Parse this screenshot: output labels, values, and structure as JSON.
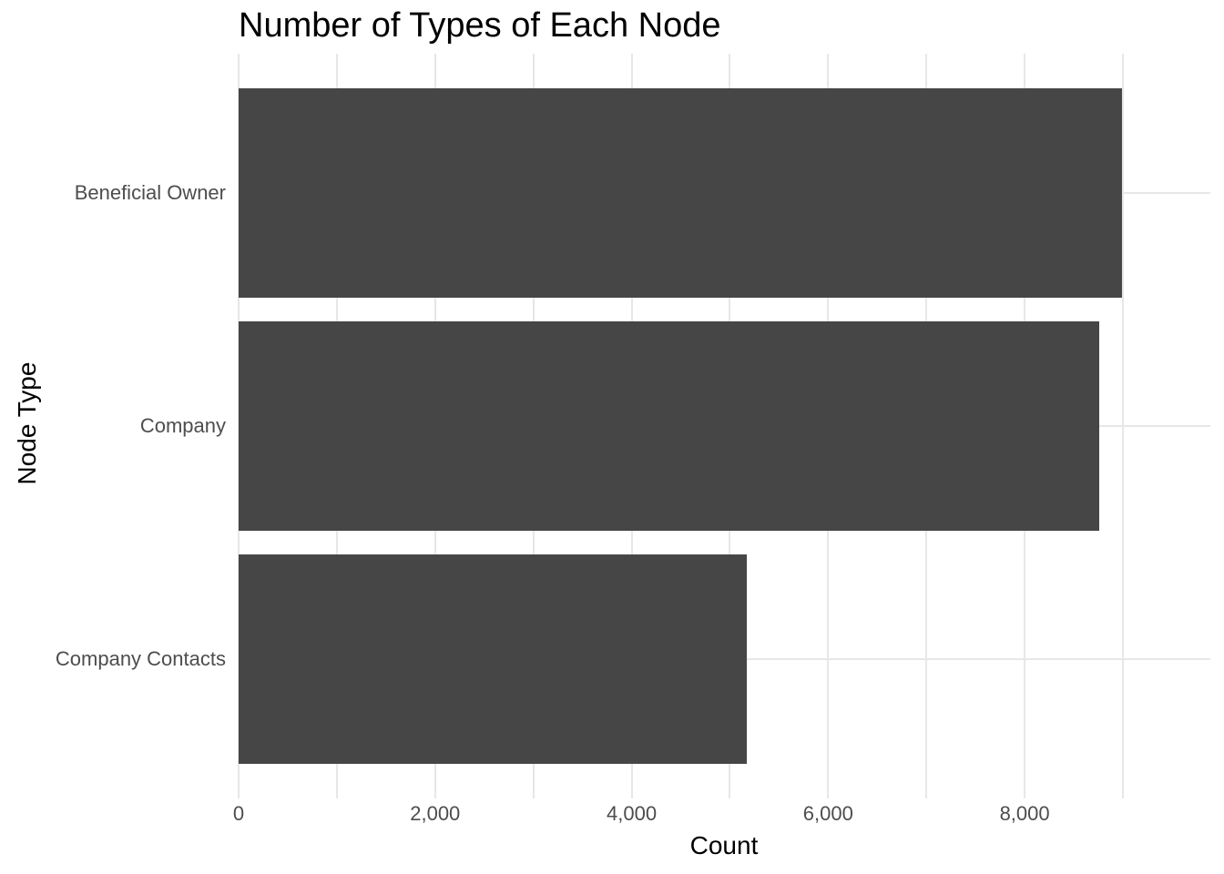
{
  "chart_data": {
    "type": "bar",
    "orientation": "horizontal",
    "title": "Number of Types of Each Node",
    "xlabel": "Count",
    "ylabel": "Node Type",
    "categories": [
      "Beneficial Owner",
      "Company",
      "Company Contacts"
    ],
    "values": [
      8990,
      8760,
      5170
    ],
    "xlim": [
      0,
      9890
    ],
    "x_ticks": [
      0,
      2000,
      4000,
      6000,
      8000
    ],
    "x_tick_labels": [
      "0",
      "2,000",
      "4,000",
      "6,000",
      "8,000"
    ],
    "grid": true,
    "grid_step": 1000,
    "legend": "none",
    "bar_width_fraction": 0.9,
    "bar_color": "#464646",
    "grid_color": "#e7e7e7",
    "tick_label_color": "#4d4d4d",
    "title_color": "#000000",
    "axis_title_color": "#000000",
    "background_color": "#ffffff"
  }
}
